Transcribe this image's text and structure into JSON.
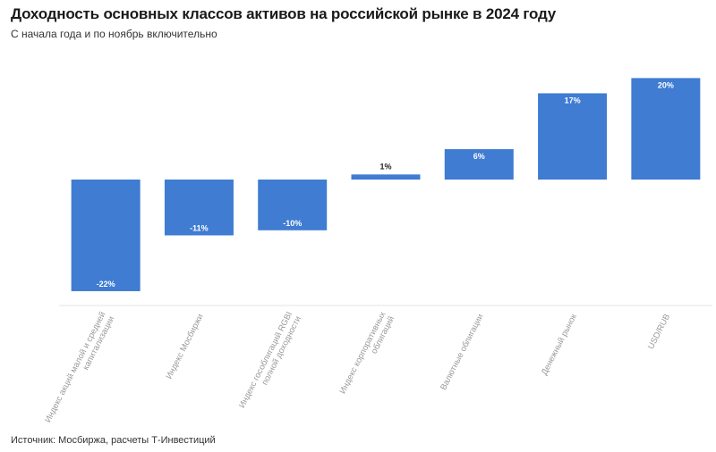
{
  "title": "Доходность основных классов активов на российской рынке в 2024 году",
  "subtitle": "С начала года и по ноябрь включительно",
  "source": "Источник: Мосбиржа, расчеты Т-Инвестиций",
  "colors": {
    "bar": "#3f7cd2",
    "label": "#ffffff",
    "label_dark": "#222222",
    "tick": "#9a9a9a",
    "axis": "#e6e6e6"
  },
  "chart_data": {
    "type": "bar",
    "title": "Доходность основных классов активов на российской рынке в 2024 году",
    "subtitle": "С начала года и по ноябрь включительно",
    "xlabel": "",
    "ylabel": "",
    "unit": "%",
    "grid": false,
    "categories": [
      "Индекс акций малой и средней капитализации",
      "Индекс Мосбиржи",
      "Индекс гособлигаций RGBI полной доходности",
      "Индекс корпоративных облигаций",
      "Валютные облигации",
      "Денежный рынок",
      "USD/RUB"
    ],
    "tick_lines": [
      [
        "Индекс акций малой и средней",
        "капитализации"
      ],
      [
        "Индекс Мосбиржи"
      ],
      [
        "Индекс гособлигаций RGBI",
        "полной доходности"
      ],
      [
        "Индекс корпоративных",
        "облигаций"
      ],
      [
        "Валютные облигации"
      ],
      [
        "Денежный рынок"
      ],
      [
        "USD/RUB"
      ]
    ],
    "values": [
      -22,
      -11,
      -10,
      1,
      6,
      17,
      20
    ],
    "data_labels": [
      "-22%",
      "-11%",
      "-10%",
      "1%",
      "6%",
      "17%",
      "20%"
    ],
    "ylim": [
      -24,
      20
    ]
  }
}
